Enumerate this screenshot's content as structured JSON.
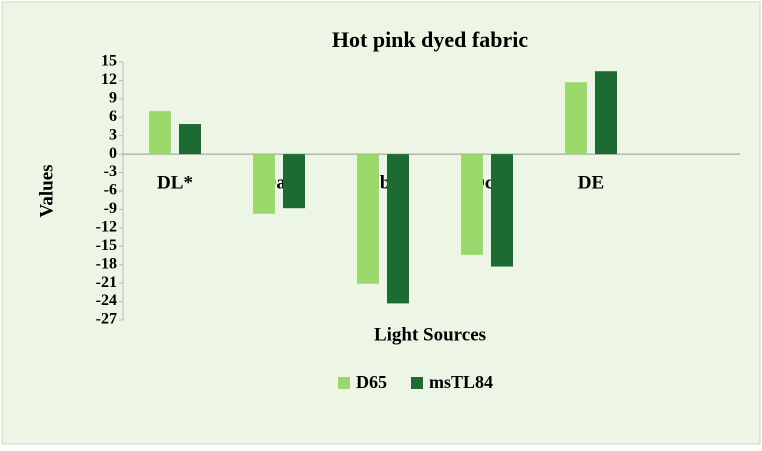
{
  "chart_data": {
    "type": "bar",
    "title": "Hot pink dyed fabric",
    "x_label": "Light Sources",
    "y_label": "Values",
    "categories": [
      "DL*",
      "Da*",
      "Db*",
      "Dc*",
      "DE"
    ],
    "series": [
      {
        "name": "D65",
        "color": "#9bd86b",
        "values": [
          7.0,
          -9.7,
          -21.1,
          -16.4,
          11.7
        ]
      },
      {
        "name": "msTL84",
        "color": "#1d6a33",
        "values": [
          4.9,
          -8.8,
          -24.3,
          -18.3,
          13.5
        ]
      }
    ],
    "ylim": [
      -27,
      15
    ],
    "yticks": [
      15,
      12,
      9,
      6,
      3,
      0,
      -3,
      -6,
      -9,
      -12,
      -15,
      -18,
      -21,
      -24,
      -27
    ],
    "legend": "bottom"
  }
}
